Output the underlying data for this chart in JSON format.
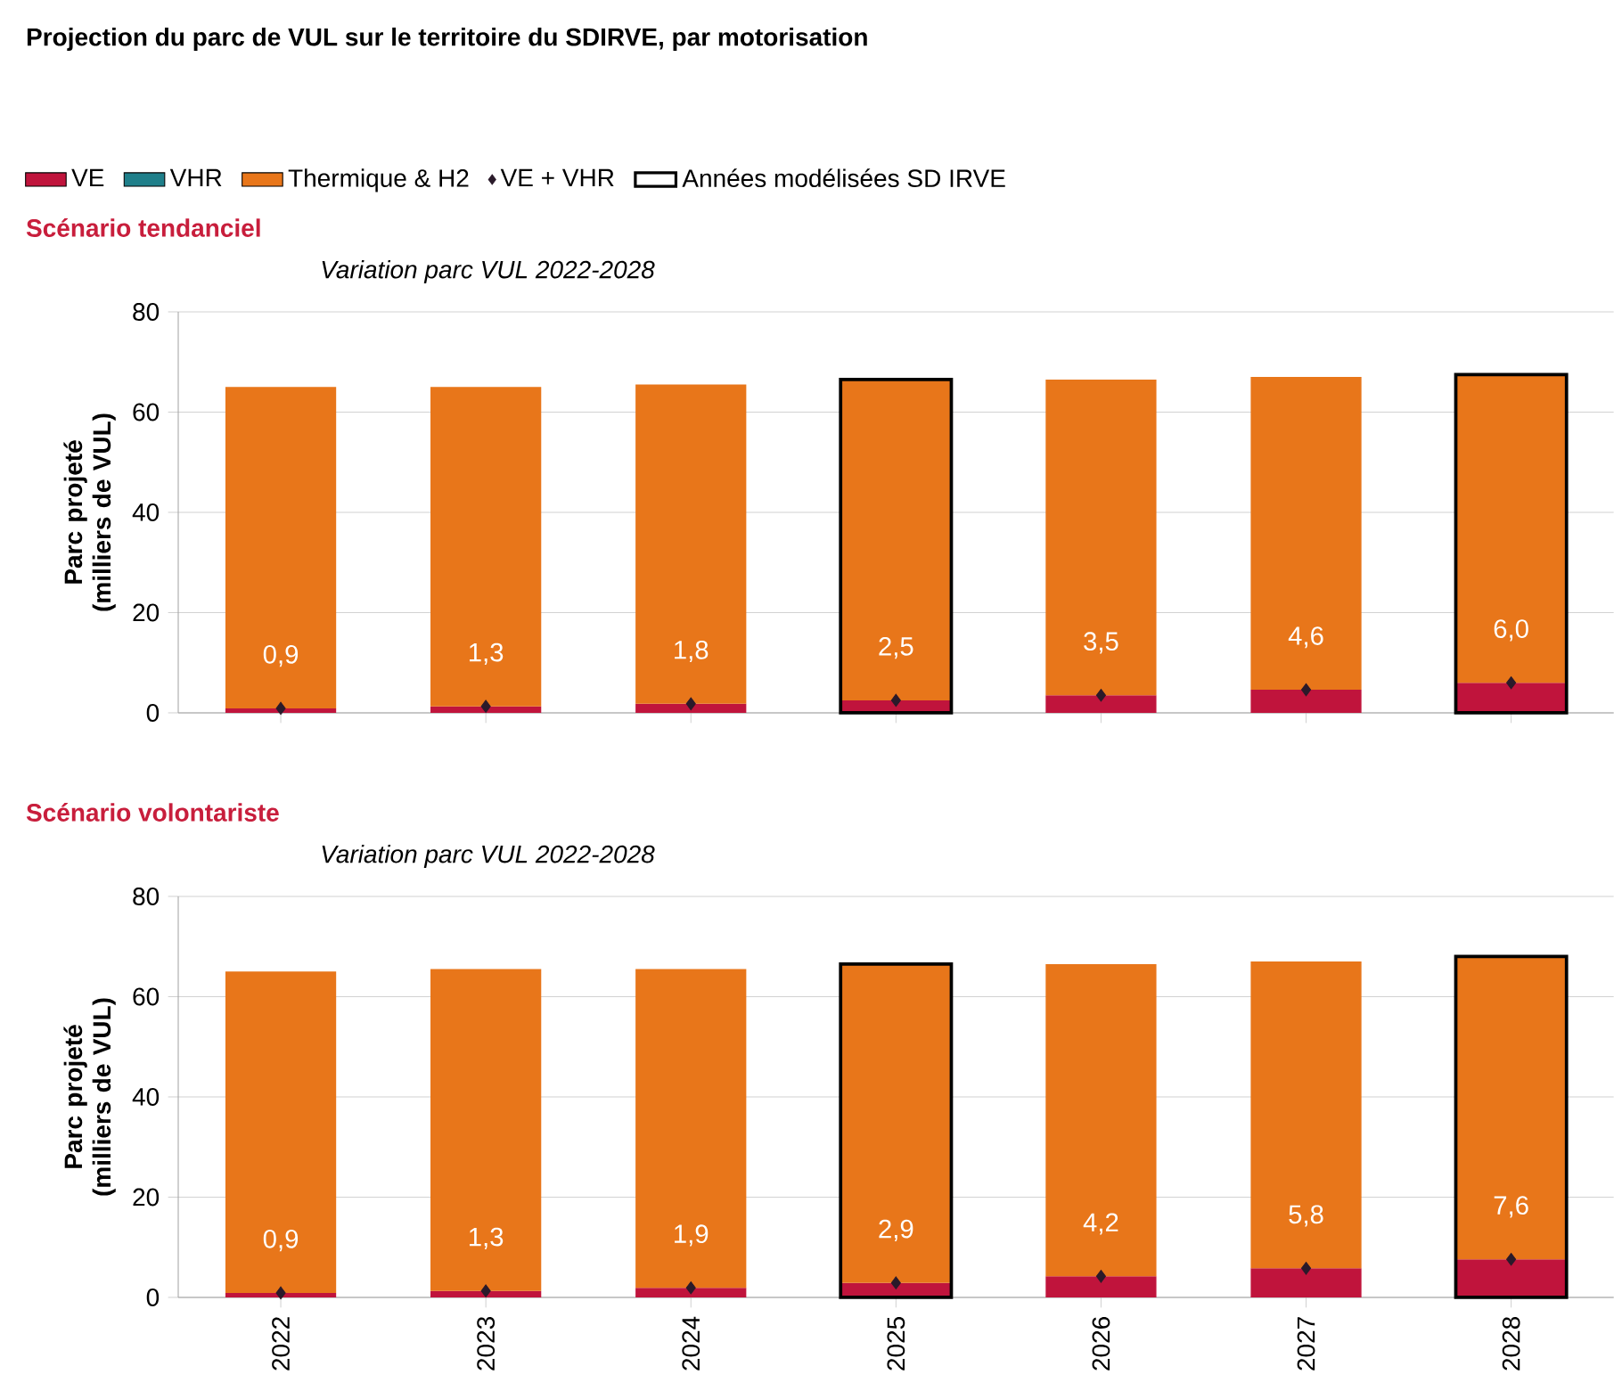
{
  "chart_data": [
    {
      "type": "bar",
      "title": "Scénario tendanciel",
      "subtitle": "Variation parc VUL 2022-2028",
      "annotations": [
        "Projection du parc de VUL sur le territoire du SDIRVE, par motorisation"
      ],
      "ylabel": "Parc projeté (milliers de VUL)",
      "categories": [
        "2022",
        "2023",
        "2024",
        "2025",
        "2026",
        "2027",
        "2028"
      ],
      "ylim": [
        0,
        80
      ],
      "yticks": [
        0,
        20,
        40,
        60,
        80
      ],
      "grid": "y",
      "legend": "top left",
      "tick_labels": "y",
      "series": [
        {
          "name": "VE",
          "color": "#c0143c",
          "base": [
            0,
            0,
            0,
            0,
            0,
            0,
            0
          ],
          "values": [
            0.9,
            1.3,
            1.8,
            2.5,
            3.5,
            4.6,
            6.0
          ]
        },
        {
          "name": "VHR",
          "color": "#1f7f8a",
          "values": [
            0,
            0,
            0,
            0,
            0,
            0,
            0
          ]
        },
        {
          "name": "Thermique & H2",
          "color": "#e8761a",
          "base": [
            0.9,
            1.3,
            1.8,
            2.5,
            3.5,
            4.6,
            6.0
          ],
          "values": [
            64.1,
            63.7,
            63.7,
            64.0,
            63.0,
            62.4,
            61.5
          ]
        },
        {
          "name": "VE + VHR",
          "type": "scatter",
          "marker": "diamond",
          "color": "#2a1a2a",
          "values": [
            0.9,
            1.3,
            1.8,
            2.5,
            3.5,
            4.6,
            6.0
          ],
          "value_labels": [
            "0,9",
            "1,3",
            "1,8",
            "2,5",
            "3,5",
            "4,6",
            "6,0"
          ]
        },
        {
          "name": "Années modélisées SD IRVE",
          "type": "bar",
          "color": "#000000",
          "base": [
            null,
            null,
            null,
            0,
            null,
            null,
            0
          ],
          "values": [
            null,
            null,
            null,
            66.5,
            null,
            null,
            67.5
          ]
        }
      ]
    },
    {
      "type": "bar",
      "title": "Scénario volontariste",
      "subtitle": "Variation parc VUL 2022-2028",
      "ylabel": "Parc projeté (milliers de VUL)",
      "categories": [
        "2022",
        "2023",
        "2024",
        "2025",
        "2026",
        "2027",
        "2028"
      ],
      "ylim": [
        0,
        80
      ],
      "yticks": [
        0,
        20,
        40,
        60,
        80
      ],
      "grid": "y",
      "series": [
        {
          "color": "#c0143c",
          "base": [
            0,
            0,
            0,
            0,
            0,
            0,
            0
          ],
          "values": [
            0.9,
            1.3,
            1.9,
            2.9,
            4.2,
            5.8,
            7.6
          ]
        },
        {
          "color": "#1f7f8a",
          "values": [
            0,
            0,
            0,
            0,
            0,
            0,
            0
          ]
        },
        {
          "color": "#e8761a",
          "base": [
            0.9,
            1.3,
            1.9,
            2.9,
            4.2,
            5.8,
            7.6
          ],
          "values": [
            64.1,
            64.2,
            63.6,
            63.6,
            62.3,
            61.2,
            60.4
          ]
        },
        {
          "type": "scatter",
          "marker": "diamond",
          "color": "#2a1a2a",
          "values": [
            0.9,
            1.3,
            1.9,
            2.9,
            4.2,
            5.8,
            7.6
          ],
          "value_labels": [
            "0,9",
            "1,3",
            "1,9",
            "2,9",
            "4,2",
            "5,8",
            "7,6"
          ]
        },
        {
          "type": "bar",
          "color": "#000000",
          "base": [
            null,
            null,
            null,
            0,
            null,
            null,
            0
          ],
          "values": [
            null,
            null,
            null,
            66.5,
            null,
            null,
            68.0
          ]
        }
      ]
    }
  ]
}
